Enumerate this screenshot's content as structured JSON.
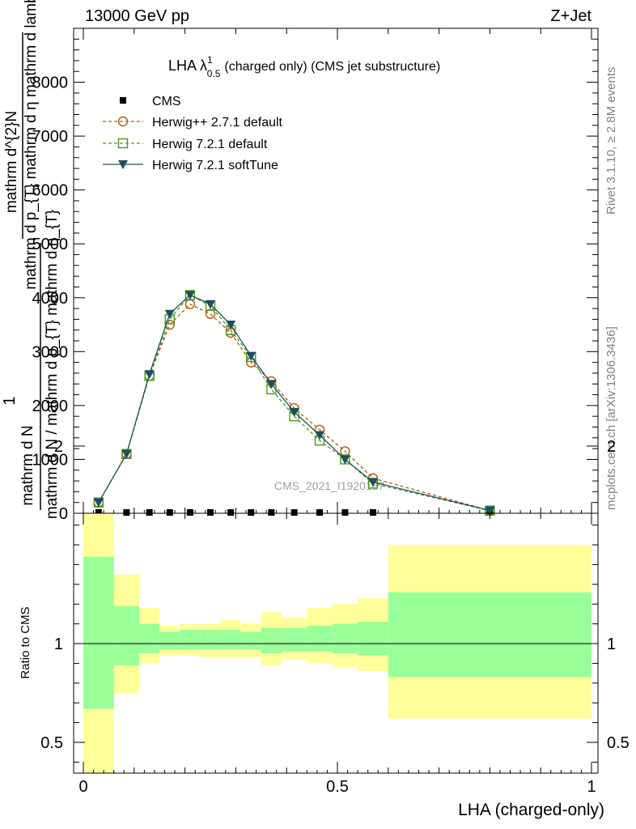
{
  "header": {
    "energy_label": "13000 GeV pp",
    "process_label": "Z+Jet"
  },
  "main_plot": {
    "title_prefix": "LHA λ",
    "title_sup": "1",
    "title_sub": "0.5",
    "title_suffix": "(charged only) (CMS jet substructure)",
    "ylabel_prefix": "1",
    "ylabel_num": "mathrm d N",
    "ylabel_den": "mathrm d N / mathrm d p_{T} mathrm d η_{T}",
    "ylabel_main_num": "mathrm d^{2}N",
    "ylabel_main_den": "mathrm d p_{T} mathrm d η mathrm d lambda",
    "watermark": "CMS_2021_I1920187"
  },
  "side_labels": {
    "rivet": "Rivet 3.1.10, ≥ 2.8M events",
    "mcplots": "mcplots.cern.ch [arXiv:1306.3436]"
  },
  "ratio_plot": {
    "ylabel": "Ratio to CMS"
  },
  "chart_data": [
    {
      "type": "line",
      "xlabel": "LHA (charged-only)",
      "xlim": [
        -0.02,
        1.0
      ],
      "ylim": [
        0,
        9000
      ],
      "x_ticks": [
        "0",
        "0.5",
        "1"
      ],
      "y_ticks": [
        "0",
        "1000",
        "2000",
        "3000",
        "4000",
        "5000",
        "6000",
        "7000",
        "8000"
      ],
      "legend_position": "top-left",
      "legend": [
        "CMS",
        "Herwig++ 2.7.1 default",
        "Herwig 7.2.1 default",
        "Herwig 7.2.1 softTune"
      ],
      "x": [
        0.03,
        0.085,
        0.13,
        0.17,
        0.21,
        0.25,
        0.29,
        0.33,
        0.37,
        0.415,
        0.465,
        0.515,
        0.57,
        0.8
      ],
      "series": [
        {
          "name": "CMS",
          "color": "#000000",
          "marker": "square",
          "values": [
            0,
            0,
            0,
            0,
            0,
            0,
            0,
            0,
            0,
            0,
            0,
            0,
            0,
            0
          ]
        },
        {
          "name": "Herwig++ 2.7.1 default",
          "color": "#b05a12",
          "marker": "open-circle",
          "dash": true,
          "values": [
            200,
            1100,
            2550,
            3500,
            3880,
            3700,
            3350,
            2800,
            2450,
            1950,
            1550,
            1150,
            650,
            50
          ]
        },
        {
          "name": "Herwig 7.2.1 default",
          "color": "#4a9a1c",
          "marker": "open-square",
          "dash": true,
          "values": [
            200,
            1100,
            2550,
            3600,
            4050,
            3850,
            3400,
            2900,
            2300,
            1800,
            1350,
            1000,
            550,
            50
          ]
        },
        {
          "name": "Herwig 7.2.1 softTune",
          "color": "#1a5060",
          "marker": "down-triangle",
          "dash": false,
          "values": [
            200,
            1100,
            2580,
            3700,
            4050,
            3880,
            3500,
            2920,
            2400,
            1880,
            1450,
            1000,
            580,
            50
          ]
        }
      ]
    },
    {
      "type": "area",
      "ylabel": "Ratio to CMS",
      "ylim": [
        0.35,
        2.3
      ],
      "y_ticks": [
        "0.5",
        "1",
        "2"
      ],
      "x_ticks": [
        "0",
        "0.5",
        "1"
      ],
      "reference": 1.0,
      "bins": [
        {
          "lo": 0.0,
          "hi": 0.06,
          "stat_lo": 0.67,
          "stat_hi": 1.44,
          "tot_lo": 0.0,
          "tot_hi": 1.8
        },
        {
          "lo": 0.06,
          "hi": 0.11,
          "stat_lo": 0.89,
          "stat_hi": 1.19,
          "tot_lo": 0.75,
          "tot_hi": 1.35
        },
        {
          "lo": 0.11,
          "hi": 0.15,
          "stat_lo": 0.95,
          "stat_hi": 1.1,
          "tot_lo": 0.9,
          "tot_hi": 1.18
        },
        {
          "lo": 0.15,
          "hi": 0.19,
          "stat_lo": 0.97,
          "stat_hi": 1.06,
          "tot_lo": 0.94,
          "tot_hi": 1.09
        },
        {
          "lo": 0.19,
          "hi": 0.23,
          "stat_lo": 0.97,
          "stat_hi": 1.07,
          "tot_lo": 0.94,
          "tot_hi": 1.1
        },
        {
          "lo": 0.23,
          "hi": 0.27,
          "stat_lo": 0.97,
          "stat_hi": 1.07,
          "tot_lo": 0.93,
          "tot_hi": 1.1
        },
        {
          "lo": 0.27,
          "hi": 0.31,
          "stat_lo": 0.97,
          "stat_hi": 1.07,
          "tot_lo": 0.93,
          "tot_hi": 1.12
        },
        {
          "lo": 0.31,
          "hi": 0.35,
          "stat_lo": 0.97,
          "stat_hi": 1.06,
          "tot_lo": 0.93,
          "tot_hi": 1.1
        },
        {
          "lo": 0.35,
          "hi": 0.39,
          "stat_lo": 0.95,
          "stat_hi": 1.08,
          "tot_lo": 0.89,
          "tot_hi": 1.16
        },
        {
          "lo": 0.39,
          "hi": 0.44,
          "stat_lo": 0.96,
          "stat_hi": 1.08,
          "tot_lo": 0.92,
          "tot_hi": 1.13
        },
        {
          "lo": 0.44,
          "hi": 0.49,
          "stat_lo": 0.96,
          "stat_hi": 1.09,
          "tot_lo": 0.9,
          "tot_hi": 1.18
        },
        {
          "lo": 0.49,
          "hi": 0.54,
          "stat_lo": 0.95,
          "stat_hi": 1.1,
          "tot_lo": 0.88,
          "tot_hi": 1.2
        },
        {
          "lo": 0.54,
          "hi": 0.6,
          "stat_lo": 0.94,
          "stat_hi": 1.11,
          "tot_lo": 0.86,
          "tot_hi": 1.23
        },
        {
          "lo": 0.6,
          "hi": 1.0,
          "stat_lo": 0.83,
          "stat_hi": 1.26,
          "tot_lo": 0.62,
          "tot_hi": 1.5
        }
      ]
    }
  ]
}
